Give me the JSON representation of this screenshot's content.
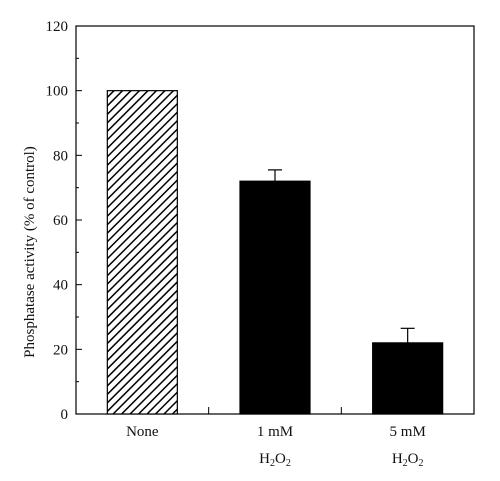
{
  "chart_data": {
    "type": "bar",
    "title": "",
    "xlabel": "",
    "ylabel": "Phosphatase activity (% of control)",
    "ylim": [
      0,
      120
    ],
    "yticks": [
      0,
      20,
      40,
      60,
      80,
      100,
      120
    ],
    "grid": false,
    "legend": "none",
    "categories": [
      {
        "line1": "None",
        "line2": ""
      },
      {
        "line1": "1 mM",
        "line2": "H2O2"
      },
      {
        "line1": "5 mM",
        "line2": "H2O2"
      }
    ],
    "values": [
      100,
      72,
      22
    ],
    "errors": [
      0,
      3.5,
      4.5
    ],
    "bar_styles": [
      "hatched",
      "solid",
      "solid"
    ],
    "colors": {
      "bar": "#000000",
      "hatch_bg": "#ffffff",
      "axis": "#000000"
    }
  }
}
